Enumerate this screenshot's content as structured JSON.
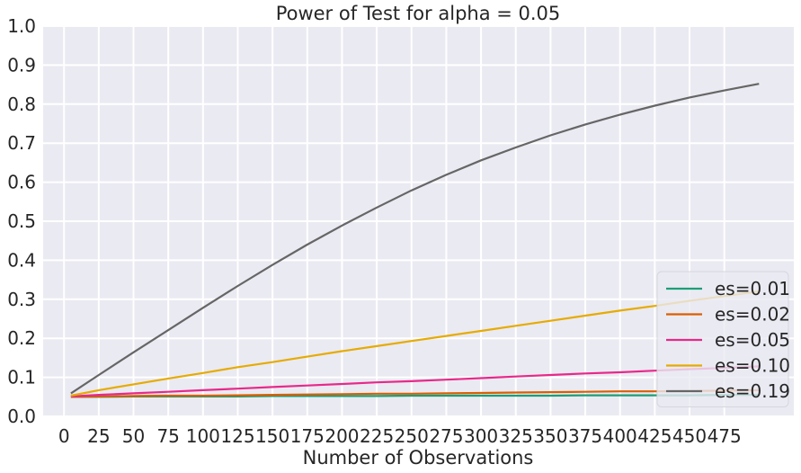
{
  "chart_data": {
    "type": "line",
    "title": "Power of Test for alpha = 0.05",
    "xlabel": "Number of Observations",
    "ylabel": "",
    "xlim": [
      -15,
      525
    ],
    "ylim": [
      0.0,
      1.0
    ],
    "x_ticks": [
      0,
      25,
      50,
      75,
      100,
      125,
      150,
      175,
      200,
      225,
      250,
      275,
      300,
      325,
      350,
      375,
      400,
      425,
      450,
      475
    ],
    "y_ticks": [
      0.0,
      0.1,
      0.2,
      0.3,
      0.4,
      0.5,
      0.6,
      0.7,
      0.8,
      0.9,
      1.0
    ],
    "y_tick_labels": [
      "0.0",
      "0.1",
      "0.2",
      "0.3",
      "0.4",
      "0.5",
      "0.6",
      "0.7",
      "0.8",
      "0.9",
      "1.0"
    ],
    "grid": true,
    "background": "#eaeaf2",
    "grid_color": "#ffffff",
    "legend_position": "lower-right",
    "x": [
      5,
      25,
      50,
      75,
      100,
      125,
      150,
      175,
      200,
      225,
      250,
      275,
      300,
      325,
      350,
      375,
      400,
      425,
      450,
      475,
      500
    ],
    "series": [
      {
        "name": "es=0.01",
        "color": "#1b9e77",
        "values": [
          0.05,
          0.05,
          0.051,
          0.051,
          0.051,
          0.051,
          0.052,
          0.052,
          0.052,
          0.052,
          0.053,
          0.053,
          0.053,
          0.053,
          0.053,
          0.054,
          0.054,
          0.054,
          0.054,
          0.055,
          0.055
        ]
      },
      {
        "name": "es=0.02",
        "color": "#d95f02",
        "values": [
          0.05,
          0.051,
          0.052,
          0.053,
          0.053,
          0.054,
          0.055,
          0.056,
          0.057,
          0.058,
          0.058,
          0.059,
          0.06,
          0.061,
          0.062,
          0.063,
          0.064,
          0.064,
          0.065,
          0.066,
          0.067
        ]
      },
      {
        "name": "es=0.05",
        "color": "#e7298a",
        "values": [
          0.051,
          0.055,
          0.059,
          0.063,
          0.067,
          0.071,
          0.075,
          0.079,
          0.083,
          0.087,
          0.09,
          0.094,
          0.098,
          0.102,
          0.106,
          0.11,
          0.113,
          0.117,
          0.121,
          0.124,
          0.128
        ]
      },
      {
        "name": "es=0.10",
        "color": "#e6ab02",
        "values": [
          0.053,
          0.067,
          0.082,
          0.097,
          0.111,
          0.126,
          0.139,
          0.153,
          0.167,
          0.18,
          0.193,
          0.206,
          0.219,
          0.232,
          0.245,
          0.258,
          0.271,
          0.283,
          0.296,
          0.308,
          0.32
        ]
      },
      {
        "name": "es=0.19",
        "color": "#666666",
        "values": [
          0.059,
          0.106,
          0.164,
          0.221,
          0.278,
          0.334,
          0.388,
          0.44,
          0.489,
          0.535,
          0.579,
          0.619,
          0.656,
          0.689,
          0.72,
          0.748,
          0.773,
          0.796,
          0.817,
          0.835,
          0.852
        ]
      }
    ]
  }
}
